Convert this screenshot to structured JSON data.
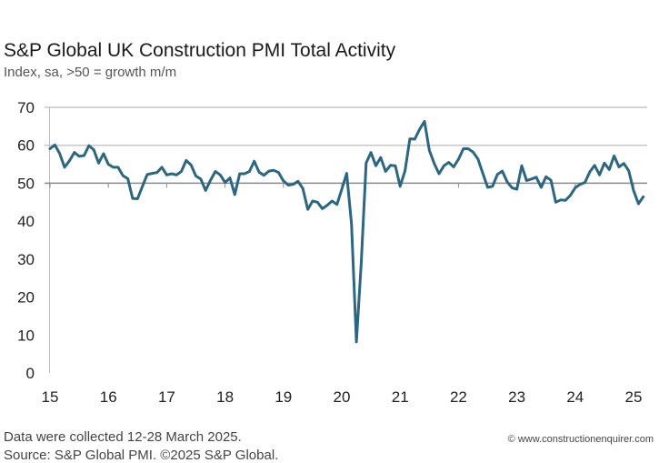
{
  "chart_data": {
    "type": "line",
    "title": "S&P Global UK Construction PMI Total Activity",
    "subtitle": "Index, sa, >50 = growth m/m",
    "xlabel": "",
    "ylabel": "",
    "ylim": [
      0,
      70
    ],
    "yticks": [
      "0",
      "10",
      "20",
      "30",
      "40",
      "50",
      "60",
      "70"
    ],
    "xticks": [
      "15",
      "16",
      "17",
      "18",
      "19",
      "20",
      "21",
      "22",
      "23",
      "24",
      "25"
    ],
    "x_start": "2015-01",
    "x_frequency": "monthly",
    "grid": true,
    "line_color": "#2b6683",
    "series": [
      {
        "values": [
          59.1,
          60.1,
          57.8,
          54.2,
          55.9,
          58.1,
          57.1,
          57.3,
          59.9,
          58.8,
          55.3,
          57.8,
          55.0,
          54.2,
          54.2,
          52.0,
          51.2,
          46.0,
          45.9,
          49.2,
          52.3,
          52.6,
          52.8,
          54.2,
          52.2,
          52.5,
          52.2,
          53.1,
          56.0,
          54.8,
          51.9,
          51.1,
          48.1,
          50.8,
          53.1,
          52.2,
          50.2,
          51.4,
          47.0,
          52.5,
          52.5,
          53.1,
          55.8,
          52.9,
          52.1,
          53.2,
          53.4,
          52.8,
          50.6,
          49.5,
          49.7,
          50.5,
          48.6,
          43.1,
          45.3,
          45.0,
          43.3,
          44.2,
          45.3,
          44.4,
          48.4,
          52.6,
          39.3,
          8.2,
          28.9,
          55.3,
          58.1,
          54.6,
          56.8,
          53.1,
          54.7,
          54.6,
          49.2,
          53.3,
          61.7,
          61.6,
          64.2,
          66.3,
          58.7,
          55.2,
          52.5,
          54.6,
          55.5,
          54.3,
          56.3,
          59.1,
          59.1,
          58.2,
          56.4,
          52.6,
          48.9,
          49.2,
          52.3,
          53.2,
          50.4,
          48.8,
          48.4,
          54.6,
          50.7,
          51.1,
          51.6,
          48.9,
          51.7,
          50.8,
          45.0,
          45.6,
          45.5,
          46.8,
          48.8,
          49.7,
          50.2,
          53.0,
          54.7,
          52.2,
          55.3,
          53.6,
          57.2,
          54.3,
          55.2,
          53.3,
          48.1,
          44.6,
          46.4
        ]
      }
    ]
  },
  "footer": {
    "note": "Data were collected 12-28 March 2025.",
    "source": "Source: S&P Global PMI. ©2025 S&P Global.",
    "credit": "© www.constructionenquirer.com"
  }
}
